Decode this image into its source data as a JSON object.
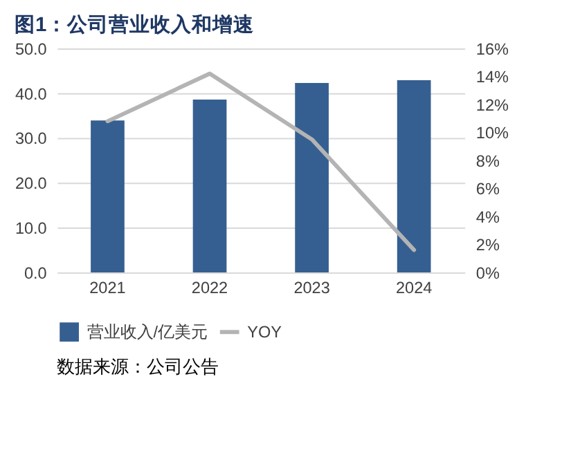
{
  "chart_data": {
    "type": "bar",
    "title": "图1：公司营业收入和增速",
    "categories": [
      "2021",
      "2022",
      "2023",
      "2024"
    ],
    "series": [
      {
        "name": "营业收入/亿美元",
        "color": "#365f91",
        "values": [
          33.9,
          38.6,
          42.3,
          42.9
        ]
      },
      {
        "name": "YOY",
        "color": "#b4b4b4",
        "type": "line",
        "axis": "y2",
        "values": [
          10.8,
          14.2,
          9.5,
          1.6
        ]
      }
    ],
    "ylim": [
      0,
      50
    ],
    "yticks": [
      {
        "value": 0,
        "label": "0.0"
      },
      {
        "value": 10,
        "label": "10.0"
      },
      {
        "value": 20,
        "label": "20.0"
      },
      {
        "value": 30,
        "label": "30.0"
      },
      {
        "value": 40,
        "label": "40.0"
      },
      {
        "value": 50,
        "label": "50.0"
      }
    ],
    "y2lim": [
      0,
      16
    ],
    "y2ticks": [
      {
        "value": 0,
        "label": "0%"
      },
      {
        "value": 2,
        "label": "2%"
      },
      {
        "value": 4,
        "label": "4%"
      },
      {
        "value": 6,
        "label": "6%"
      },
      {
        "value": 8,
        "label": "8%"
      },
      {
        "value": 10,
        "label": "10%"
      },
      {
        "value": 12,
        "label": "12%"
      },
      {
        "value": 14,
        "label": "14%"
      },
      {
        "value": 16,
        "label": "16%"
      }
    ],
    "grid": "y",
    "legend": "bottom",
    "line_style": "solid",
    "marker": "none",
    "annotations": [
      "数据来源：公司公告"
    ]
  }
}
